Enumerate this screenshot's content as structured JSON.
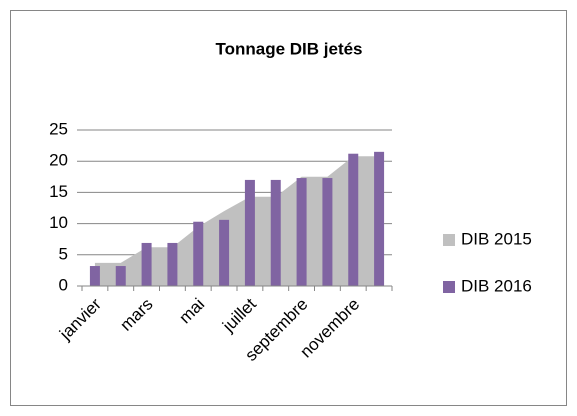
{
  "chart_data": {
    "type": "bar-area",
    "title": "Tonnage DIB jetés",
    "categories": [
      "janvier",
      null,
      "mars",
      null,
      "mai",
      null,
      "juillet",
      null,
      "septembre",
      null,
      "novembre",
      null
    ],
    "series": [
      {
        "name": "DIB 2015",
        "color": "#c0c0c0",
        "kind": "area",
        "values": [
          3.7,
          3.7,
          6.2,
          6.2,
          9.5,
          12,
          14.3,
          14.3,
          17.5,
          17.5,
          20.8,
          20.8
        ]
      },
      {
        "name": "DIB 2016",
        "color": "#8064a2",
        "kind": "bar",
        "values": [
          3.2,
          3.2,
          6.9,
          6.9,
          10.3,
          10.6,
          17,
          17,
          17.3,
          17.3,
          21.2,
          21.5
        ]
      }
    ],
    "ylim": [
      0,
      25
    ],
    "yticks": [
      0,
      5,
      10,
      15,
      20,
      25
    ],
    "grid": true,
    "legend": "right"
  }
}
